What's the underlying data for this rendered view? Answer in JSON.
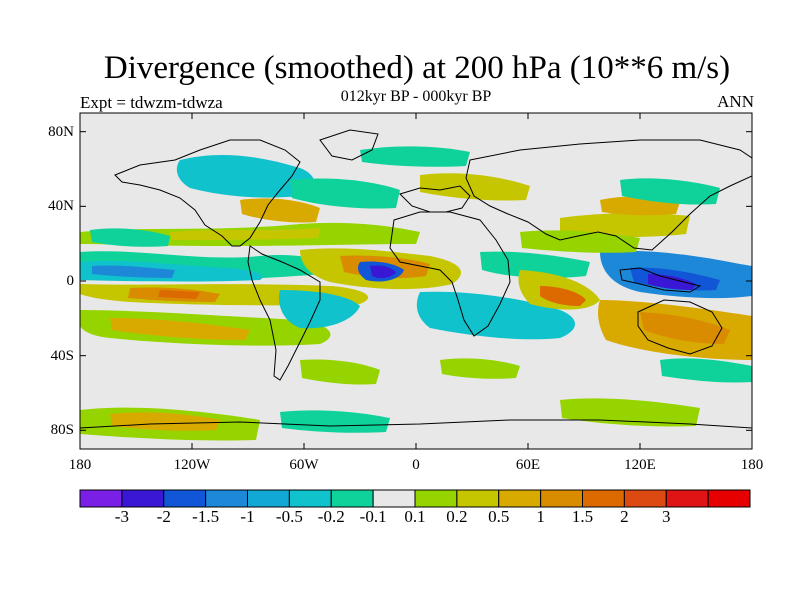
{
  "header": {
    "title": "Divergence (smoothed) at 200 hPa (10**6 m/s)",
    "subtitle": "012kyr BP - 000kyr BP",
    "left_label": "Expt = tdwzm-tdwza",
    "right_label": "ANN"
  },
  "map": {
    "lon_range": [
      -180,
      180
    ],
    "lat_range": [
      -90,
      90
    ],
    "x_ticks": [
      {
        "value": -180,
        "label": "180"
      },
      {
        "value": -120,
        "label": "120W"
      },
      {
        "value": -60,
        "label": "60W"
      },
      {
        "value": 0,
        "label": "0"
      },
      {
        "value": 60,
        "label": "60E"
      },
      {
        "value": 120,
        "label": "120E"
      },
      {
        "value": 180,
        "label": "180"
      }
    ],
    "y_ticks": [
      {
        "value": 80,
        "label": "80N"
      },
      {
        "value": 40,
        "label": "40N"
      },
      {
        "value": 0,
        "label": "0"
      },
      {
        "value": -40,
        "label": "40S"
      },
      {
        "value": -80,
        "label": "80S"
      }
    ],
    "background_color": "#e8e8e8"
  },
  "colorbar": {
    "colors": [
      "#7a1fe6",
      "#3a17d4",
      "#1156d6",
      "#1e88d8",
      "#12a8d6",
      "#10c2cc",
      "#0fd29a",
      "#e8e8e8",
      "#96d400",
      "#c6c600",
      "#d8aa00",
      "#d98c00",
      "#dc6a00",
      "#dc4a12",
      "#e01414",
      "#e60000"
    ],
    "labels": [
      "-3",
      "-2",
      "-1.5",
      "-1",
      "-0.5",
      "-0.2",
      "-0.1",
      "0.1",
      "0.2",
      "0.5",
      "1",
      "1.5",
      "2",
      "3"
    ]
  }
}
